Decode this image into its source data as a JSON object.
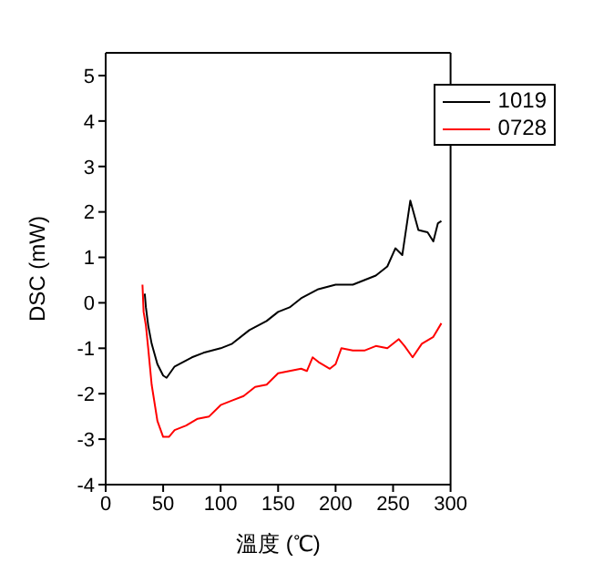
{
  "chart_data": {
    "type": "line",
    "xlabel": "溫度 (℃)",
    "ylabel": "DSC (mW)",
    "xlim": [
      0,
      300
    ],
    "xticks": [
      0,
      50,
      100,
      150,
      200,
      250,
      300
    ],
    "ylim": [
      -4,
      5.5
    ],
    "yticks": [
      -4,
      -3,
      -2,
      -1,
      0,
      1,
      2,
      3,
      4,
      5
    ],
    "grid": false,
    "legend": "top right",
    "marker": "none",
    "line_style": "solid",
    "series": [
      {
        "name": "1019",
        "color": "#000000",
        "x": [
          34,
          35,
          37,
          40,
          45,
          50,
          53,
          60,
          75,
          85,
          100,
          110,
          125,
          140,
          150,
          160,
          170,
          185,
          200,
          215,
          225,
          235,
          245,
          252,
          258,
          265,
          272,
          280,
          285,
          289,
          292
        ],
        "values": [
          0.2,
          -0.1,
          -0.5,
          -0.9,
          -1.35,
          -1.6,
          -1.65,
          -1.4,
          -1.2,
          -1.1,
          -1.0,
          -0.9,
          -0.6,
          -0.4,
          -0.2,
          -0.1,
          0.1,
          0.3,
          0.4,
          0.4,
          0.5,
          0.6,
          0.8,
          1.2,
          1.05,
          2.25,
          1.6,
          1.55,
          1.35,
          1.75,
          1.8
        ]
      },
      {
        "name": "0728",
        "color": "#ff0000",
        "x": [
          32,
          33,
          35,
          37,
          40,
          45,
          50,
          55,
          60,
          70,
          80,
          90,
          100,
          110,
          120,
          130,
          140,
          150,
          160,
          170,
          175,
          180,
          185,
          195,
          200,
          205,
          215,
          225,
          235,
          245,
          255,
          260,
          267,
          275,
          285,
          292
        ],
        "values": [
          0.4,
          -0.2,
          -0.5,
          -1.0,
          -1.8,
          -2.6,
          -2.95,
          -2.95,
          -2.8,
          -2.7,
          -2.55,
          -2.5,
          -2.25,
          -2.15,
          -2.05,
          -1.85,
          -1.8,
          -1.55,
          -1.5,
          -1.45,
          -1.5,
          -1.2,
          -1.3,
          -1.45,
          -1.35,
          -1.0,
          -1.05,
          -1.05,
          -0.95,
          -1.0,
          -0.8,
          -0.95,
          -1.2,
          -0.9,
          -0.75,
          -0.45
        ]
      }
    ]
  }
}
